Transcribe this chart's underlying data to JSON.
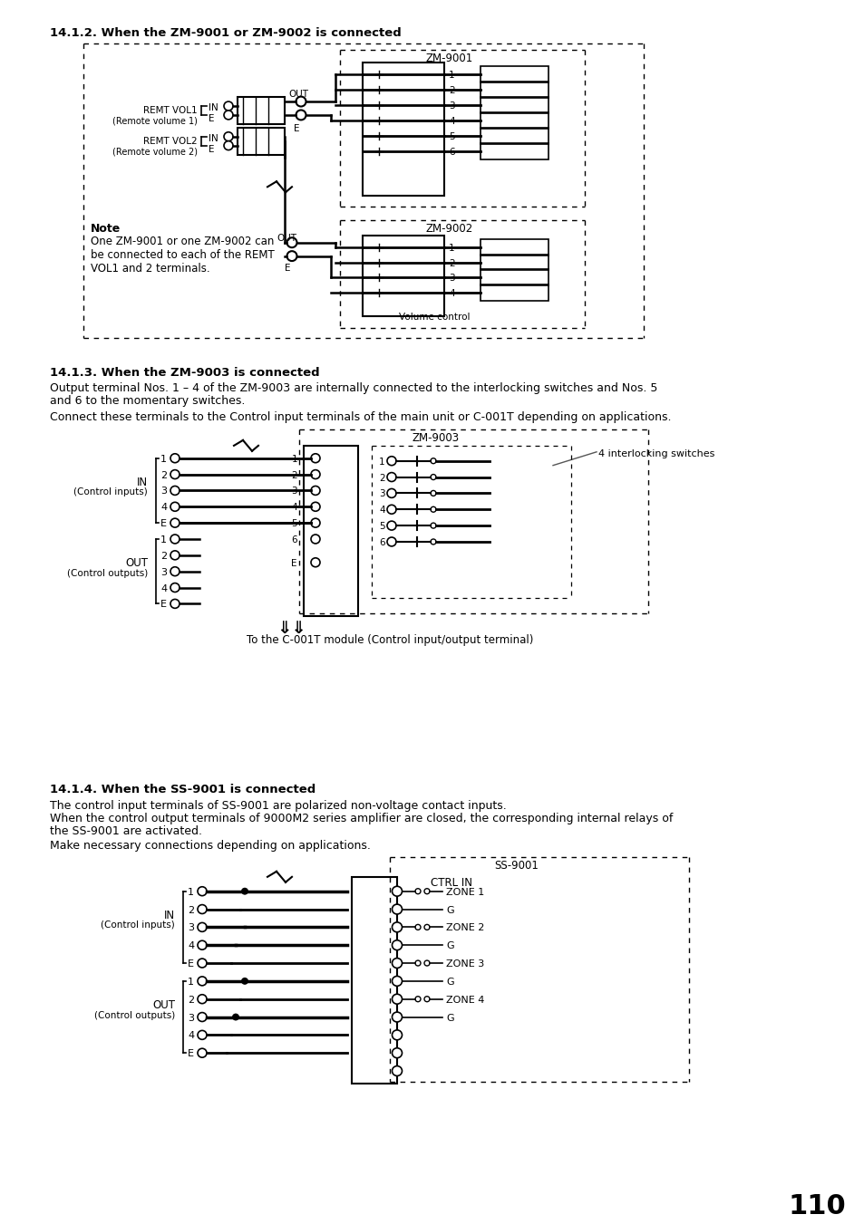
{
  "page_bg": "#ffffff",
  "text_color": "#000000",
  "page_number": "110",
  "section1_title": "14.1.2. When the ZM-9001 or ZM-9002 is connected",
  "section2_title": "14.1.3. When the ZM-9003 is connected",
  "section2_para1": "Output terminal Nos. 1 – 4 of the ZM-9003 are internally connected to the interlocking switches and Nos. 5\nand 6 to the momentary switches.",
  "section2_para2": "Connect these terminals to the Control input terminals of the main unit or C-001T depending on applications.",
  "section3_title": "14.1.4. When the SS-9001 is connected",
  "section3_para1": "The control input terminals of SS-9001 are polarized non-voltage contact inputs.",
  "section3_para2": "When the control output terminals of 9000M2 series amplifier are closed, the corresponding internal relays of\nthe SS-9001 are activated.",
  "section3_para3": "Make necessary connections depending on applications.",
  "note_title": "Note",
  "note_text": "One ZM-9001 or one ZM-9002 can\nbe connected to each of the REMT\nVOL1 and 2 terminals."
}
